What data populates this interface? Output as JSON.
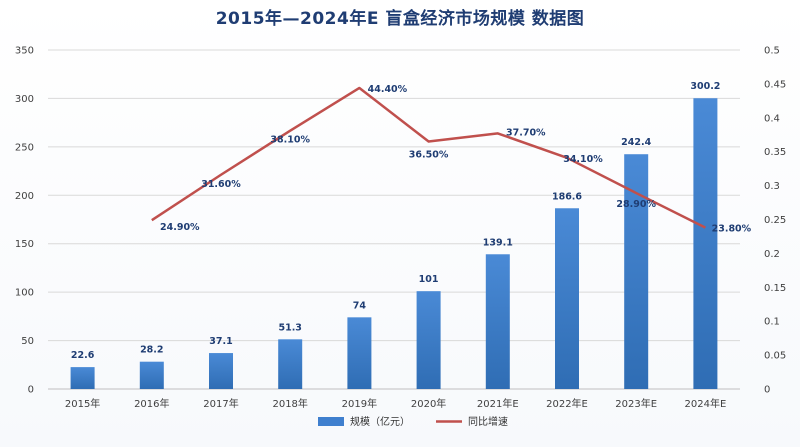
{
  "chart_data": {
    "type": "bar",
    "title": "2015年—2024年E 盲盒经济市场规模 数据图",
    "categories": [
      "2015年",
      "2016年",
      "2017年",
      "2018年",
      "2019年",
      "2020年",
      "2021年E",
      "2022年E",
      "2023年E",
      "2024年E"
    ],
    "series": [
      {
        "name": "规模（亿元）",
        "type": "bar",
        "axis": "left",
        "values": [
          22.6,
          28.2,
          37.1,
          51.3,
          74,
          101,
          139.1,
          186.6,
          242.4,
          300.2
        ],
        "labels": [
          "22.6",
          "28.2",
          "37.1",
          "51.3",
          "74",
          "101",
          "139.1",
          "186.6",
          "242.4",
          "300.2"
        ],
        "color": "#3f7fce"
      },
      {
        "name": "同比增速",
        "type": "line",
        "axis": "right",
        "values": [
          null,
          0.249,
          0.316,
          0.381,
          0.444,
          0.365,
          0.377,
          0.341,
          0.289,
          0.238
        ],
        "labels": [
          null,
          "24.90%",
          "31.60%",
          "38.10%",
          "44.40%",
          "36.50%",
          "37.70%",
          "34.10%",
          "28.90%",
          "23.80%"
        ],
        "color": "#c0504d"
      }
    ],
    "y_left": {
      "ylim": [
        0,
        350
      ],
      "ticks": [
        "0",
        "50",
        "100",
        "150",
        "200",
        "250",
        "300",
        "350"
      ]
    },
    "y_right": {
      "ylim": [
        0,
        0.5
      ],
      "ticks": [
        "0",
        "0.05",
        "0.1",
        "0.15",
        "0.2",
        "0.25",
        "0.3",
        "0.35",
        "0.4",
        "0.45",
        "0.5"
      ]
    },
    "grid": true,
    "legend": "bottom"
  }
}
